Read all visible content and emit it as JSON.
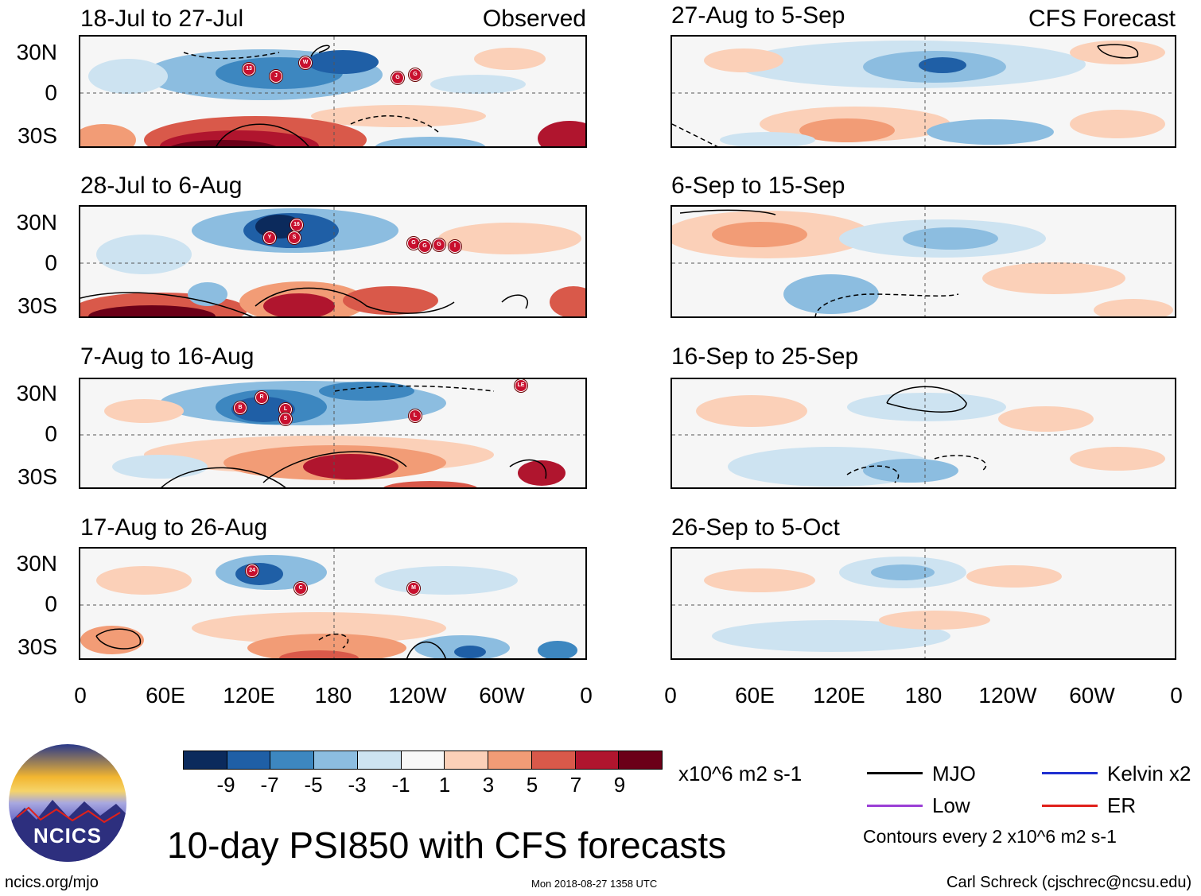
{
  "panels": {
    "observed": [
      {
        "title": "18-Jul to 27-Jul",
        "tag": "Observed"
      },
      {
        "title": "28-Jul to 6-Aug"
      },
      {
        "title": "7-Aug to 16-Aug"
      },
      {
        "title": "17-Aug to 26-Aug"
      }
    ],
    "forecast": [
      {
        "title": "27-Aug to 5-Sep",
        "tag": "CFS Forecast"
      },
      {
        "title": "6-Sep to 15-Sep"
      },
      {
        "title": "16-Sep to 25-Sep"
      },
      {
        "title": "26-Sep to 5-Oct"
      }
    ]
  },
  "axes": {
    "lat_labels": [
      "30N",
      "0",
      "30S"
    ],
    "lon_labels": [
      "0",
      "60E",
      "120E",
      "180",
      "120W",
      "60W",
      "0"
    ]
  },
  "storms": {
    "p1": [
      "13",
      "J",
      "W",
      "G",
      "G"
    ],
    "p2": [
      "16",
      "Y",
      "S",
      "G",
      "G",
      "G",
      "I"
    ],
    "p3": [
      "B",
      "R",
      "L",
      "S",
      "L",
      "LE"
    ],
    "p4": [
      "24",
      "C",
      "M"
    ]
  },
  "colorbar": {
    "colors": [
      "#0b2a5c",
      "#1f5fa6",
      "#3d87c0",
      "#8cbde0",
      "#cde3f1",
      "#f8f8f8",
      "#fbd0b8",
      "#f29c76",
      "#d9594a",
      "#b0152e",
      "#6b0018"
    ],
    "ticks": [
      "-9",
      "-7",
      "-5",
      "-3",
      "-1",
      "1",
      "3",
      "5",
      "7",
      "9"
    ],
    "units": "x10^6 m2 s-1"
  },
  "legend": {
    "items": [
      {
        "label": "MJO",
        "color": "#000000"
      },
      {
        "label": "Kelvin x2",
        "color": "#1f2fd0"
      },
      {
        "label": "Low",
        "color": "#9b3fd6"
      },
      {
        "label": "ER",
        "color": "#e0201a"
      }
    ],
    "note": "Contours every 2 x10^6 m2 s-1"
  },
  "title": "10-day PSI850 with CFS forecasts",
  "logo_text": "NCICS",
  "footer": {
    "url": "ncics.org/mjo",
    "timestamp": "Mon 2018-08-27 1358 UTC",
    "credit": "Carl Schreck (cjschrec@ncsu.edu)"
  }
}
